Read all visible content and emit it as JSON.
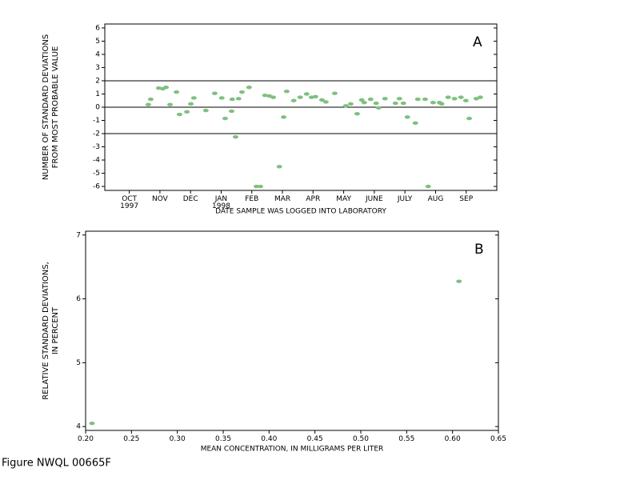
{
  "chart_data": [
    {
      "type": "scatter",
      "annotation": "A",
      "x_label": "DATE SAMPLE WAS LOGGED INTO LABORATORY",
      "y_label": [
        "NUMBER OF STANDARD DEVIATIONS",
        "FROM MOST PROBABLE VALUE"
      ],
      "xlim": [
        -0.3,
        12.5
      ],
      "ylim": [
        -6.3,
        6.3
      ],
      "xticks": [
        {
          "value": 0.5,
          "label": "OCT\n1997"
        },
        {
          "value": 1.5,
          "label": "NOV"
        },
        {
          "value": 2.5,
          "label": "DEC"
        },
        {
          "value": 3.5,
          "label": "JAN\n1998"
        },
        {
          "value": 4.5,
          "label": "FEB"
        },
        {
          "value": 5.5,
          "label": "MAR"
        },
        {
          "value": 6.5,
          "label": "APR"
        },
        {
          "value": 7.5,
          "label": "MAY"
        },
        {
          "value": 8.5,
          "label": "JUNE"
        },
        {
          "value": 9.5,
          "label": "JULY"
        },
        {
          "value": 10.5,
          "label": "AUG"
        },
        {
          "value": 11.5,
          "label": "SEP"
        }
      ],
      "yticks": [
        -6,
        -5,
        -4,
        -3,
        -2,
        -1,
        0,
        1,
        2,
        3,
        4,
        5,
        6
      ],
      "reference_lines": [
        2,
        0,
        -2
      ],
      "color": "#7fc07f",
      "x": [
        1.12,
        1.2,
        1.46,
        1.59,
        1.7,
        1.83,
        2.04,
        2.14,
        2.38,
        2.51,
        2.61,
        3.0,
        3.29,
        3.52,
        3.63,
        3.84,
        3.86,
        3.97,
        4.07,
        4.18,
        4.41,
        4.65,
        4.78,
        4.93,
        5.07,
        5.2,
        5.4,
        5.54,
        5.64,
        5.87,
        6.08,
        6.29,
        6.45,
        6.58,
        6.79,
        6.92,
        7.21,
        7.57,
        7.73,
        7.94,
        8.09,
        8.17,
        8.38,
        8.56,
        8.64,
        8.85,
        9.19,
        9.32,
        9.45,
        9.58,
        9.84,
        9.92,
        10.16,
        10.26,
        10.42,
        10.63,
        10.7,
        10.91,
        11.12,
        11.33,
        11.49,
        11.6,
        11.83,
        11.96
      ],
      "values": [
        0.2,
        0.6,
        1.45,
        1.4,
        1.5,
        0.2,
        1.15,
        -0.55,
        -0.35,
        0.25,
        0.7,
        -0.25,
        1.05,
        0.7,
        -0.85,
        -0.3,
        0.6,
        -2.25,
        0.65,
        1.15,
        1.5,
        -6,
        -6,
        0.9,
        0.85,
        0.75,
        -4.5,
        -0.75,
        1.2,
        0.5,
        0.75,
        1.0,
        0.75,
        0.8,
        0.55,
        0.4,
        1.05,
        0.1,
        0.25,
        -0.5,
        0.55,
        0.35,
        0.6,
        0.3,
        -0.05,
        0.65,
        0.3,
        0.65,
        0.3,
        -0.75,
        -1.2,
        0.6,
        0.6,
        -6,
        0.35,
        0.35,
        0.25,
        0.75,
        0.65,
        0.75,
        0.5,
        -0.85,
        0.65,
        0.75
      ]
    },
    {
      "type": "scatter",
      "annotation": "B",
      "x_label": "MEAN CONCENTRATION, IN MILLIGRAMS PER LITER",
      "y_label": [
        "RELATIVE STANDARD DEVIATIONS,",
        "IN PERCENT"
      ],
      "xlim": [
        0.2,
        0.65
      ],
      "ylim": [
        3.94,
        7.06
      ],
      "xticks": [
        {
          "value": 0.2,
          "label": "0.20"
        },
        {
          "value": 0.25,
          "label": "0.25"
        },
        {
          "value": 0.3,
          "label": "0.30"
        },
        {
          "value": 0.35,
          "label": "0.35"
        },
        {
          "value": 0.4,
          "label": "0.40"
        },
        {
          "value": 0.45,
          "label": "0.45"
        },
        {
          "value": 0.5,
          "label": "0.50"
        },
        {
          "value": 0.55,
          "label": "0.55"
        },
        {
          "value": 0.6,
          "label": "0.60"
        },
        {
          "value": 0.65,
          "label": "0.65"
        }
      ],
      "yticks": [
        4,
        5,
        6,
        7
      ],
      "color": "#7fc07f",
      "x": [
        0.207,
        0.607
      ],
      "values": [
        4.05,
        6.275
      ]
    }
  ],
  "caption": "Figure NWQL 00665F"
}
